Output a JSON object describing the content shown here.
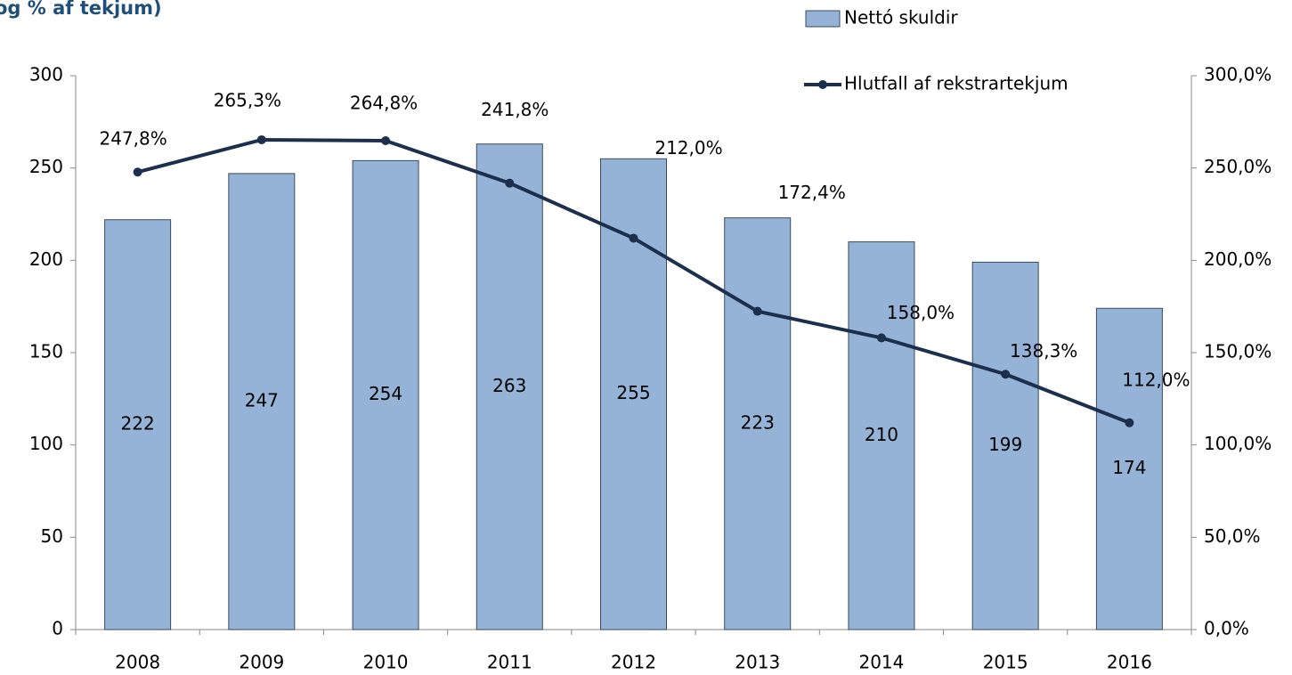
{
  "chart_data": {
    "type": "bar+line",
    "title": "og % af tekjum)",
    "categories": [
      "2008",
      "2009",
      "2010",
      "2011",
      "2012",
      "2013",
      "2014",
      "2015",
      "2016"
    ],
    "series": [
      {
        "name": "Nettó skuldir",
        "type": "bar",
        "color": "#95b3d7",
        "values": [
          222,
          247,
          254,
          263,
          255,
          223,
          210,
          199,
          174
        ]
      },
      {
        "name": "Hlutfall af rekstrartekjum",
        "type": "line",
        "axis": "y2",
        "color": "#1c2f4d",
        "values": [
          247.8,
          265.3,
          264.8,
          241.8,
          212.0,
          172.4,
          158.0,
          138.3,
          112.0
        ],
        "value_labels": [
          "247,8%",
          "265,3%",
          "264,8%",
          "241,8%",
          "212,0%",
          "172,4%",
          "158,0%",
          "138,3%",
          "112,0%"
        ]
      }
    ],
    "ylim": [
      0,
      300
    ],
    "yticks": [
      0,
      50,
      100,
      150,
      200,
      250,
      300
    ],
    "y2lim": [
      0,
      300
    ],
    "y2ticks": [
      {
        "value": 0,
        "label": "0,0%"
      },
      {
        "value": 50,
        "label": "50,0%"
      },
      {
        "value": 100,
        "label": "100,0%"
      },
      {
        "value": 150,
        "label": "150,0%"
      },
      {
        "value": 200,
        "label": "200,0%"
      },
      {
        "value": 250,
        "label": "250,0%"
      },
      {
        "value": 300,
        "label": "300,0%"
      }
    ],
    "grid": false,
    "legend": "top-right"
  }
}
